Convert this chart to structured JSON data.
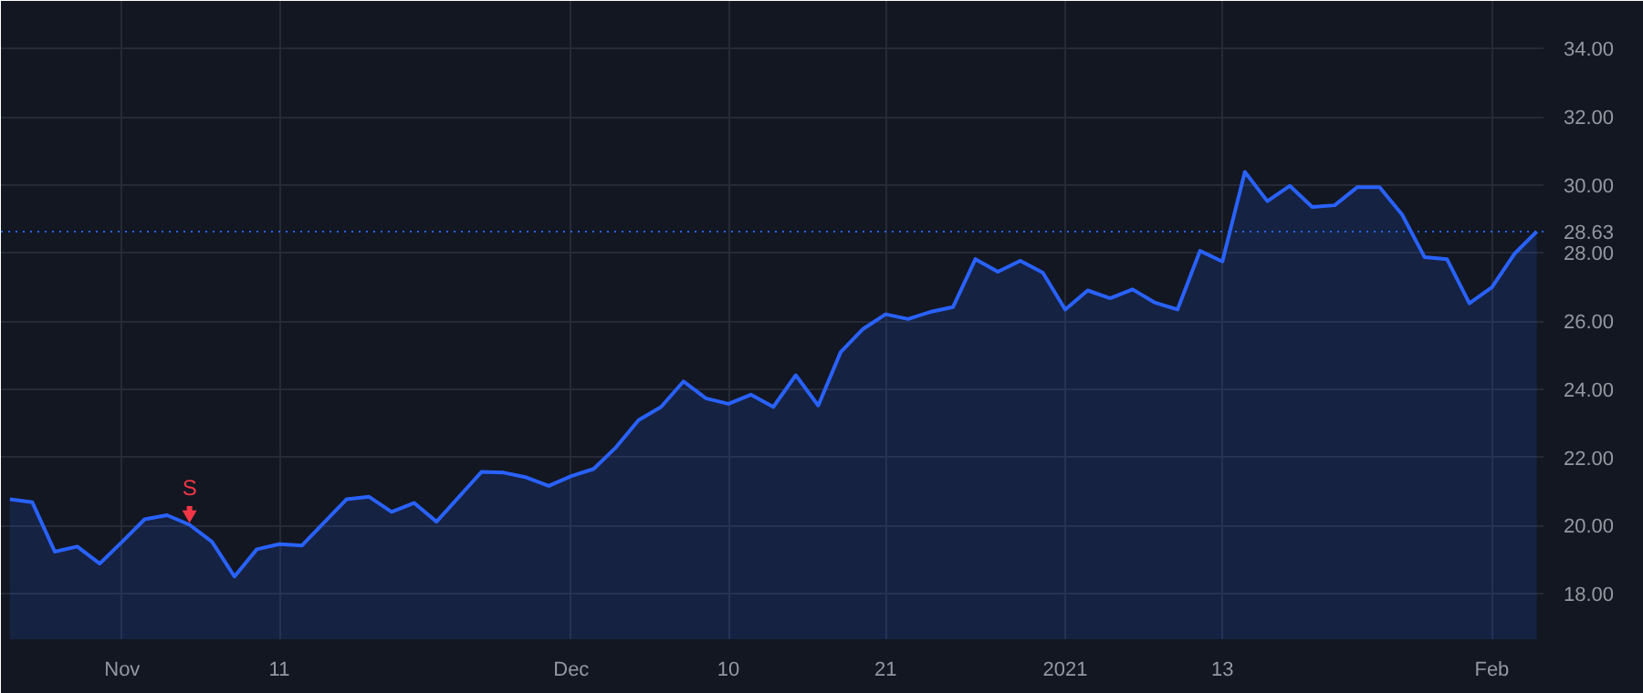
{
  "chart_data": {
    "type": "area",
    "categories": [
      null,
      null,
      null,
      null,
      null,
      "Nov",
      null,
      null,
      null,
      null,
      null,
      null,
      "11",
      null,
      null,
      null,
      null,
      null,
      null,
      null,
      null,
      null,
      null,
      null,
      null,
      "Dec",
      null,
      null,
      null,
      null,
      null,
      null,
      "10",
      null,
      null,
      null,
      null,
      null,
      null,
      "21",
      null,
      null,
      null,
      null,
      null,
      null,
      null,
      "2021",
      null,
      null,
      null,
      null,
      null,
      null,
      "13",
      null,
      null,
      null,
      null,
      null,
      null,
      null,
      null,
      null,
      null,
      null,
      "Feb",
      null,
      null
    ],
    "series": [
      {
        "color": "#2962ff",
        "values": [
          20.77,
          20.68,
          19.23,
          19.38,
          18.88,
          19.52,
          20.18,
          20.3,
          20.02,
          19.52,
          18.5,
          19.3,
          19.45,
          19.41,
          20.09,
          20.77,
          20.84,
          20.4,
          20.66,
          20.11,
          20.84,
          21.57,
          21.55,
          21.41,
          21.16,
          21.45,
          21.66,
          22.3,
          23.09,
          23.48,
          24.23,
          23.73,
          23.57,
          23.84,
          23.48,
          24.41,
          23.52,
          25.09,
          25.77,
          26.2,
          26.06,
          26.27,
          26.41,
          27.82,
          27.45,
          27.77,
          27.42,
          26.34,
          26.9,
          26.67,
          26.93,
          26.54,
          26.34,
          28.06,
          27.75,
          30.38,
          29.52,
          29.97,
          29.35,
          29.4,
          29.93,
          29.93,
          29.13,
          27.88,
          27.82,
          26.52,
          26.99,
          27.97,
          28.63
        ]
      }
    ],
    "ylim": [
      16.66,
      35.4
    ],
    "yticks": [
      {
        "value": 18,
        "label": "18.00"
      },
      {
        "value": 20,
        "label": "20.00"
      },
      {
        "value": 22,
        "label": "22.00"
      },
      {
        "value": 24,
        "label": "24.00"
      },
      {
        "value": 26,
        "label": "26.00"
      },
      {
        "value": 28,
        "label": "28.00"
      },
      {
        "value": 30,
        "label": "30.00"
      },
      {
        "value": 32,
        "label": "32.00"
      },
      {
        "value": 34,
        "label": "34.00"
      }
    ],
    "ref_lines": [
      {
        "axis": "y",
        "value": 28.63,
        "label": "28.63",
        "color": "#2962ff",
        "line_style": "dotted"
      }
    ],
    "annotations": [
      {
        "text": "S",
        "y": 20.02
      }
    ],
    "grid": true
  }
}
